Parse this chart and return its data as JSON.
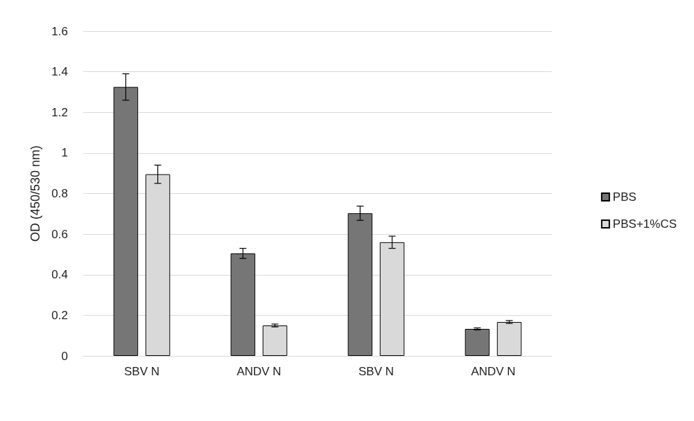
{
  "chart_data": {
    "type": "bar",
    "ylabel": "OD (450/530 nm)",
    "categories": [
      "SBV N",
      "ANDV N",
      "SBV N",
      "ANDV N"
    ],
    "series": [
      {
        "name": "PBS",
        "color": "#767676",
        "values": [
          1.325,
          0.505,
          0.703,
          0.133
        ],
        "errors": [
          0.065,
          0.025,
          0.035,
          0.005
        ]
      },
      {
        "name": "PBS+1%CS",
        "color": "#d9d9d9",
        "values": [
          0.895,
          0.15,
          0.56,
          0.167
        ],
        "errors": [
          0.045,
          0.007,
          0.03,
          0.007
        ]
      }
    ],
    "ylim": [
      0,
      1.6
    ],
    "yticks": [
      0,
      0.2,
      0.4,
      0.6,
      0.8,
      1,
      1.2,
      1.4,
      1.6
    ],
    "grid": "y",
    "legend": "right"
  }
}
